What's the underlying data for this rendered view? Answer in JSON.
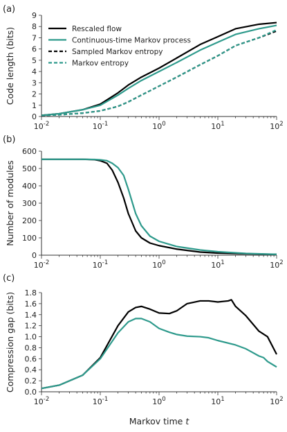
{
  "colors": {
    "black": "#000000",
    "teal": "#2e9a8c"
  },
  "x_tick_labels": [
    {
      "base": "10",
      "exp": "-2"
    },
    {
      "base": "10",
      "exp": "-1"
    },
    {
      "base": "10",
      "exp": "0"
    },
    {
      "base": "10",
      "exp": "1"
    },
    {
      "base": "10",
      "exp": "2"
    }
  ],
  "chart_data": [
    {
      "panel_label": "(a)",
      "type": "line",
      "xscale": "log",
      "xlim": [
        0.01,
        100
      ],
      "ylim": [
        0,
        9
      ],
      "ylabel": "Code length (bits)",
      "xlabel": "",
      "yticks": [
        0,
        1,
        2,
        3,
        4,
        5,
        6,
        7,
        8,
        9
      ],
      "legend_position": "top-left",
      "series": [
        {
          "name": "Rescaled flow",
          "color": "#000000",
          "dash": "solid",
          "x": [
            0.01,
            0.02,
            0.05,
            0.1,
            0.2,
            0.3,
            0.5,
            1,
            2,
            5,
            10,
            20,
            50,
            100
          ],
          "y": [
            0.1,
            0.25,
            0.6,
            1.1,
            2.1,
            2.8,
            3.5,
            4.3,
            5.2,
            6.4,
            7.1,
            7.8,
            8.2,
            8.35
          ]
        },
        {
          "name": "Continuous-time Markov process",
          "color": "#2e9a8c",
          "dash": "solid",
          "x": [
            0.01,
            0.02,
            0.05,
            0.1,
            0.2,
            0.3,
            0.5,
            1,
            2,
            5,
            10,
            20,
            50,
            100
          ],
          "y": [
            0.1,
            0.25,
            0.6,
            1.0,
            1.9,
            2.5,
            3.2,
            4.0,
            4.8,
            5.9,
            6.6,
            7.3,
            7.8,
            8.1
          ]
        },
        {
          "name": "Sampled Markov entropy",
          "color": "#000000",
          "dash": "dashed",
          "x": [
            0.01,
            0.02,
            0.05,
            0.1,
            0.2,
            0.3,
            0.5,
            1,
            2,
            5,
            10,
            20,
            50,
            100
          ],
          "y": [
            0.1,
            0.15,
            0.3,
            0.5,
            0.9,
            1.3,
            1.9,
            2.7,
            3.5,
            4.6,
            5.4,
            6.3,
            7.0,
            7.6
          ]
        },
        {
          "name": "Markov entropy",
          "color": "#2e9a8c",
          "dash": "dashed",
          "x": [
            0.01,
            0.02,
            0.05,
            0.1,
            0.2,
            0.3,
            0.5,
            1,
            2,
            5,
            10,
            20,
            50,
            100
          ],
          "y": [
            0.1,
            0.15,
            0.3,
            0.5,
            0.9,
            1.3,
            1.9,
            2.7,
            3.5,
            4.6,
            5.4,
            6.3,
            7.0,
            7.7
          ]
        }
      ]
    },
    {
      "panel_label": "(b)",
      "type": "line",
      "xscale": "log",
      "xlim": [
        0.01,
        100
      ],
      "ylim": [
        0,
        600
      ],
      "ylabel": "Number of modules",
      "xlabel": "",
      "yticks": [
        0,
        100,
        200,
        300,
        400,
        500,
        600
      ],
      "series": [
        {
          "color": "#000000",
          "dash": "solid",
          "x": [
            0.01,
            0.05,
            0.08,
            0.1,
            0.13,
            0.16,
            0.2,
            0.25,
            0.3,
            0.4,
            0.5,
            0.7,
            1,
            2,
            5,
            10,
            30,
            100
          ],
          "y": [
            553,
            553,
            551,
            545,
            530,
            490,
            420,
            330,
            240,
            140,
            100,
            70,
            55,
            35,
            18,
            12,
            8,
            5
          ]
        },
        {
          "color": "#2e9a8c",
          "dash": "solid",
          "x": [
            0.01,
            0.05,
            0.08,
            0.1,
            0.13,
            0.16,
            0.2,
            0.25,
            0.3,
            0.4,
            0.5,
            0.7,
            1,
            2,
            5,
            10,
            30,
            100
          ],
          "y": [
            553,
            553,
            552,
            550,
            545,
            530,
            505,
            460,
            380,
            240,
            170,
            110,
            80,
            50,
            30,
            20,
            10,
            5
          ]
        }
      ]
    },
    {
      "panel_label": "(c)",
      "type": "line",
      "xscale": "log",
      "xlim": [
        0.01,
        100
      ],
      "ylim": [
        0,
        1.8
      ],
      "ylabel": "Compression gap (bits)",
      "xlabel": "Markov time t",
      "yticks": [
        0.0,
        0.2,
        0.4,
        0.6,
        0.8,
        1.0,
        1.2,
        1.4,
        1.6,
        1.8
      ],
      "yticklabels": [
        "0.0",
        "0.2",
        "0.4",
        "0.6",
        "0.8",
        "1.0",
        "1.2",
        "1.4",
        "1.6",
        "1.8"
      ],
      "series": [
        {
          "color": "#000000",
          "dash": "solid",
          "x": [
            0.01,
            0.02,
            0.05,
            0.1,
            0.2,
            0.3,
            0.4,
            0.5,
            0.7,
            1,
            1.5,
            2,
            3,
            5,
            7,
            10,
            15,
            17,
            20,
            30,
            50,
            70,
            100
          ],
          "y": [
            0.06,
            0.12,
            0.3,
            0.62,
            1.2,
            1.45,
            1.53,
            1.55,
            1.5,
            1.43,
            1.42,
            1.47,
            1.6,
            1.65,
            1.65,
            1.63,
            1.65,
            1.67,
            1.55,
            1.38,
            1.1,
            1.0,
            0.68
          ]
        },
        {
          "color": "#2e9a8c",
          "dash": "solid",
          "x": [
            0.01,
            0.02,
            0.05,
            0.1,
            0.2,
            0.3,
            0.4,
            0.5,
            0.7,
            1,
            1.5,
            2,
            3,
            5,
            7,
            10,
            20,
            30,
            50,
            60,
            70,
            100
          ],
          "y": [
            0.06,
            0.12,
            0.3,
            0.6,
            1.07,
            1.27,
            1.33,
            1.33,
            1.27,
            1.15,
            1.08,
            1.04,
            1.01,
            1.0,
            0.98,
            0.93,
            0.85,
            0.78,
            0.65,
            0.62,
            0.55,
            0.45
          ]
        }
      ]
    }
  ]
}
